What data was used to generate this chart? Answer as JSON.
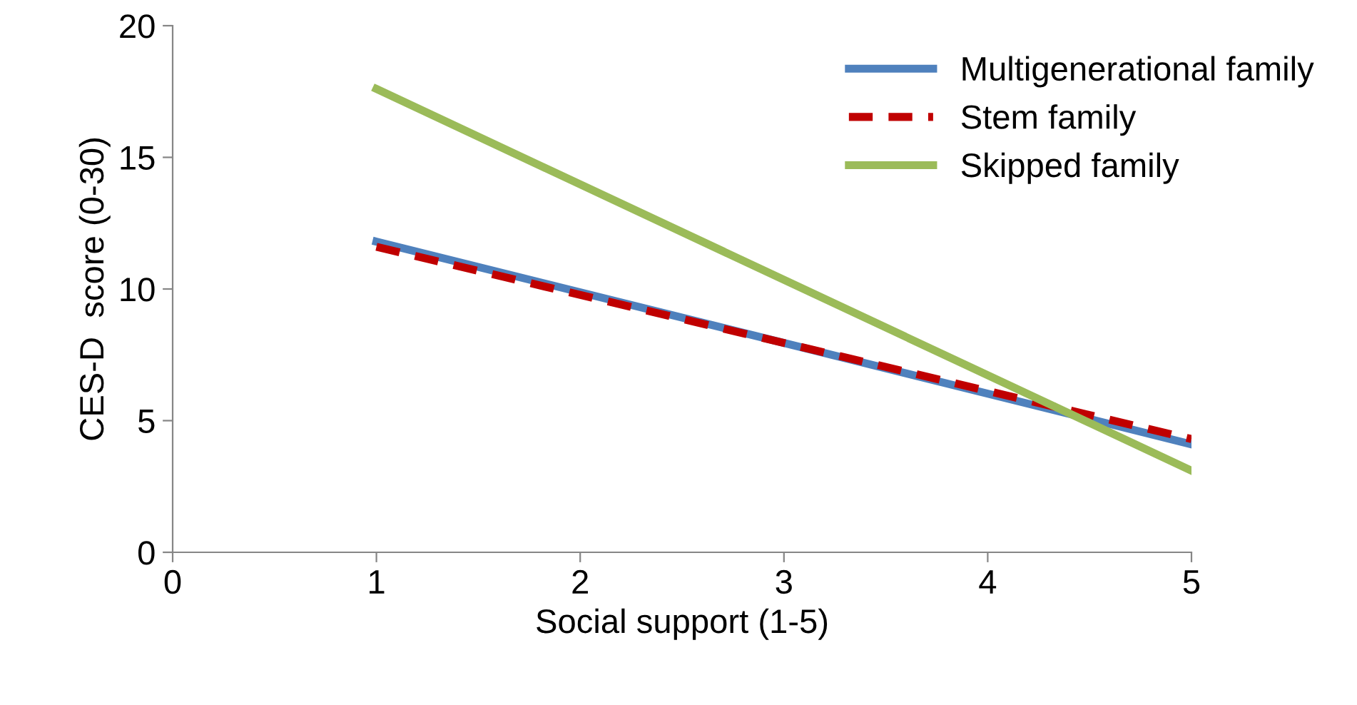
{
  "chart_data": {
    "type": "line",
    "xlabel": "Social support (1-5)",
    "ylabel": "CES-D  score (0-30)",
    "x": [
      1,
      5
    ],
    "series": [
      {
        "name": "Multigenerational family",
        "color": "#4f81bd",
        "values": [
          11.8,
          4.1
        ],
        "line_style": "solid"
      },
      {
        "name": "Stem family",
        "color": "#c00000",
        "values": [
          11.6,
          4.3
        ],
        "line_style": "dashed"
      },
      {
        "name": "Skipped family",
        "color": "#9bbb59",
        "values": [
          17.6,
          3.1
        ],
        "line_style": "solid"
      }
    ],
    "xlim": [
      0,
      5
    ],
    "xticks": [
      0,
      1,
      2,
      3,
      4,
      5
    ],
    "ylim": [
      0,
      20
    ],
    "yticks": [
      0,
      5,
      10,
      15,
      20
    ],
    "grid": false,
    "legend": "top right",
    "marker": "none"
  }
}
